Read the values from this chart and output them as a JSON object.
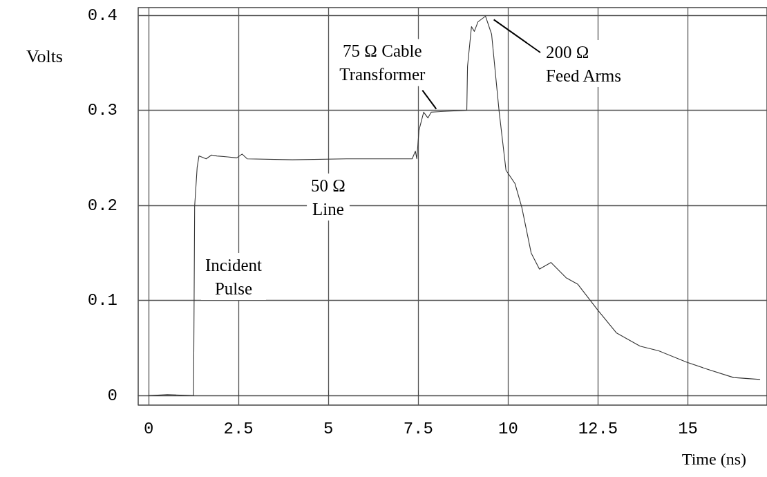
{
  "chart_data": {
    "type": "line",
    "xlabel": "Time (ns)",
    "ylabel": "Volts",
    "xlim": [
      -0.29,
      17.2
    ],
    "ylim": [
      -0.01,
      0.408
    ],
    "xticks": [
      0,
      2.5,
      5,
      7.5,
      10,
      12.5,
      15
    ],
    "yticks": [
      0,
      0.1,
      0.2,
      0.3,
      0.4
    ],
    "grid": true,
    "marker": "none",
    "line_style": "solid",
    "series": [
      {
        "color": "#333333",
        "x": [
          0,
          0.52,
          1.25,
          1.28,
          1.35,
          1.4,
          1.6,
          1.75,
          1.9,
          2.2,
          2.45,
          2.6,
          2.74,
          4,
          5.5,
          7.33,
          7.42,
          7.46,
          7.52,
          7.65,
          7.77,
          7.86,
          8.3,
          8.85,
          8.87,
          8.98,
          9.06,
          9.16,
          9.37,
          9.54,
          9.75,
          9.94,
          10.19,
          10.38,
          10.64,
          10.87,
          11.19,
          11.61,
          11.94,
          12.49,
          13.01,
          13.67,
          14.19,
          14.97,
          15.52,
          16.27,
          17.0
        ],
        "values": [
          0,
          0.001,
          0,
          0.199,
          0.24,
          0.252,
          0.249,
          0.253,
          0.252,
          0.251,
          0.25,
          0.254,
          0.249,
          0.248,
          0.249,
          0.249,
          0.257,
          0.249,
          0.279,
          0.298,
          0.292,
          0.298,
          0.299,
          0.3,
          0.346,
          0.388,
          0.383,
          0.393,
          0.399,
          0.38,
          0.2985,
          0.237,
          0.223,
          0.198,
          0.15,
          0.133,
          0.14,
          0.124,
          0.117,
          0.09,
          0.066,
          0.052,
          0.047,
          0.035,
          0.028,
          0.019,
          0.017
        ]
      }
    ],
    "annotations": [
      "Incident\nPulse",
      "50 Ω\nLine",
      {
        "text": "75 Ω Cable\nTransformer",
        "x": 8.0,
        "y": 0.3
      },
      "200 Ω\nFeed Arms"
    ]
  }
}
